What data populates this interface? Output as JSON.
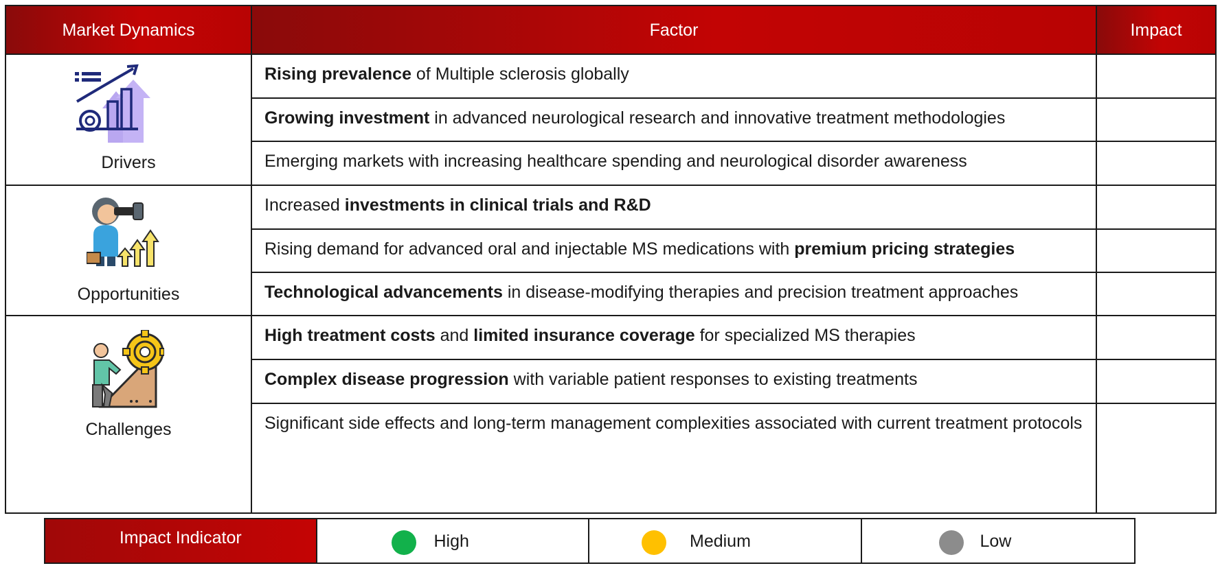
{
  "header": {
    "col_dynamics": "Market Dynamics",
    "col_factor": "Factor",
    "col_impact": "Impact"
  },
  "categories": [
    {
      "label": "Drivers",
      "icon": "growth-chart-icon",
      "rows": [
        {
          "bold": "Rising prevalence",
          "text": " of Multiple sclerosis globally"
        },
        {
          "bold": "Growing investment",
          "text": " in advanced neurological research and innovative treatment methodologies"
        },
        {
          "bold": "",
          "text": "Emerging markets with increasing healthcare spending and neurological disorder awareness"
        }
      ]
    },
    {
      "label": "Opportunities",
      "icon": "binoculars-person-icon",
      "rows": [
        {
          "pre": "Increased ",
          "bold": "investments in clinical trials and R&D",
          "text": ""
        },
        {
          "pre": "Rising demand for advanced oral and injectable MS medications with ",
          "bold": "premium pricing strategies",
          "text": ""
        },
        {
          "bold": "Technological advancements",
          "text": " in disease-modifying therapies and precision treatment approaches"
        }
      ]
    },
    {
      "label": "Challenges",
      "icon": "climbing-gear-icon",
      "rows": [
        {
          "bold": "High treatment costs",
          "mid": " and ",
          "bold2": "limited insurance coverage",
          "text": " for specialized MS therapies"
        },
        {
          "bold": "Complex disease progression",
          "text": " with variable patient responses to existing treatments"
        },
        {
          "bold": "",
          "text": "Significant side effects and long-term management complexities associated with current treatment protocols"
        }
      ]
    }
  ],
  "legend": {
    "title": "Impact Indicator",
    "items": [
      {
        "label": "High",
        "color": "#12b14b"
      },
      {
        "label": "Medium",
        "color": "#ffc000"
      },
      {
        "label": "Low",
        "color": "#8c8c8c"
      }
    ]
  },
  "colors": {
    "header_red": "#c20404",
    "border": "#1a1a1a"
  }
}
